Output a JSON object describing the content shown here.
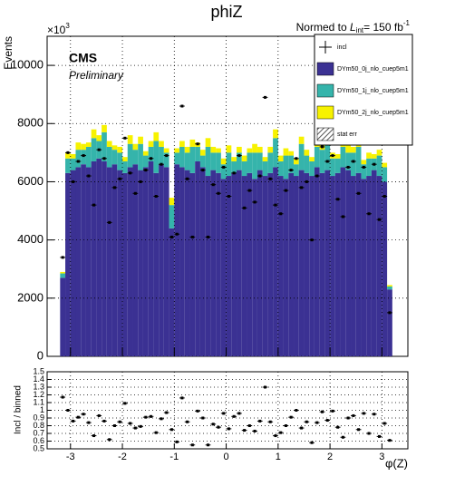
{
  "chart_data": {
    "type": "stacked_histogram",
    "title": "phiZ",
    "normalization": {
      "prefix": "Normed to",
      "symbol": "L",
      "subscript": "int",
      "suffix": "= 150 fb",
      "superscript": "-1"
    },
    "experiment": "CMS",
    "status": "Preliminary",
    "y_label": "Events",
    "y_multiplier": {
      "base": "×10",
      "exponent": "3"
    },
    "x_label": "φ(Z)",
    "ratio_label": "Incl / binned",
    "bins": [
      -3.2,
      -3.1,
      -3.0,
      -2.9,
      -2.8,
      -2.7,
      -2.6,
      -2.5,
      -2.4,
      -2.3,
      -2.2,
      -2.1,
      -2.0,
      -1.9,
      -1.8,
      -1.7,
      -1.6,
      -1.5,
      -1.4,
      -1.3,
      -1.2,
      -1.1,
      -1.0,
      -0.9,
      -0.8,
      -0.7,
      -0.6,
      -0.5,
      -0.4,
      -0.3,
      -0.2,
      -0.1,
      0,
      0.1,
      0.2,
      0.3,
      0.4,
      0.5,
      0.6,
      0.7,
      0.8,
      0.9,
      1.0,
      1.1,
      1.2,
      1.3,
      1.4,
      1.5,
      1.6,
      1.7,
      1.8,
      1.9,
      2.0,
      2.1,
      2.2,
      2.3,
      2.4,
      2.5,
      2.6,
      2.7,
      2.8,
      2.9,
      3.0,
      3.1,
      3.2
    ],
    "series": [
      {
        "name": "DYm50_0j_nlo_cuep5m1",
        "color": "#3b3193",
        "values": [
          2700,
          6300,
          6400,
          6500,
          6600,
          6500,
          6700,
          6800,
          6700,
          6500,
          6600,
          6400,
          6300,
          6500,
          6600,
          6400,
          6500,
          6700,
          6300,
          6600,
          6500,
          4400,
          6600,
          6500,
          6400,
          6300,
          6700,
          6500,
          6200,
          6400,
          6300,
          6100,
          6200,
          6300,
          6400,
          6200,
          6300,
          6100,
          6400,
          6200,
          6300,
          6500,
          6200,
          6100,
          6300,
          6200,
          6400,
          6300,
          6200,
          6500,
          6300,
          6400,
          6200,
          6300,
          6500,
          6400,
          6200,
          6300,
          6100,
          6200,
          6400,
          6200,
          6000,
          2300
        ]
      },
      {
        "name": "DYm50_1j_nlo_cuep5m1",
        "color": "#35b4ab",
        "values": [
          150,
          500,
          400,
          600,
          500,
          700,
          800,
          600,
          1000,
          700,
          500,
          600,
          400,
          800,
          500,
          900,
          400,
          500,
          1100,
          600,
          500,
          800,
          400,
          700,
          600,
          900,
          500,
          400,
          1000,
          600,
          700,
          500,
          800,
          400,
          600,
          500,
          700,
          900,
          600,
          500,
          700,
          1000,
          500,
          800,
          600,
          400,
          900,
          600,
          500,
          700,
          800,
          1000,
          600,
          500,
          700,
          600,
          800,
          900,
          500,
          600,
          400,
          700,
          500,
          100
        ]
      },
      {
        "name": "DYm50_2j_nlo_cuep5m1",
        "color": "#f7f200",
        "values": [
          50,
          200,
          150,
          250,
          200,
          150,
          300,
          200,
          250,
          200,
          150,
          200,
          150,
          300,
          200,
          250,
          150,
          200,
          300,
          200,
          150,
          250,
          150,
          200,
          200,
          250,
          150,
          200,
          300,
          200,
          150,
          200,
          250,
          150,
          200,
          200,
          150,
          300,
          200,
          150,
          200,
          300,
          200,
          250,
          150,
          200,
          250,
          200,
          150,
          200,
          250,
          300,
          200,
          150,
          200,
          250,
          200,
          250,
          150,
          200,
          150,
          200,
          150,
          50
        ]
      }
    ],
    "data_series": {
      "name": "incl",
      "color": "#000000",
      "values": [
        3400,
        7000,
        6000,
        6700,
        6900,
        6200,
        5200,
        7100,
        6800,
        4600,
        5800,
        6100,
        7500,
        6300,
        5600,
        6000,
        6400,
        6800,
        5500,
        6600,
        6900,
        4100,
        4200,
        8600,
        6100,
        4100,
        7300,
        6400,
        4100,
        5900,
        5600,
        6500,
        5500,
        6300,
        6900,
        5100,
        5700,
        5300,
        6200,
        8900,
        6100,
        5200,
        4900,
        5700,
        6400,
        6800,
        5800,
        6000,
        4000,
        6200,
        7200,
        6700,
        6900,
        5400,
        4800,
        6500,
        6700,
        5600,
        6500,
        4900,
        6600,
        4700,
        5500,
        1500
      ]
    },
    "error_name": "stat err",
    "ratio": [
      1.17,
      1.0,
      0.86,
      0.91,
      0.95,
      0.84,
      0.67,
      0.93,
      0.86,
      0.62,
      0.8,
      0.85,
      1.09,
      0.83,
      0.77,
      0.79,
      0.91,
      0.92,
      0.71,
      0.89,
      0.97,
      0.75,
      0.59,
      1.16,
      0.85,
      0.55,
      0.99,
      0.9,
      0.55,
      0.82,
      0.78,
      0.96,
      0.76,
      0.92,
      0.96,
      0.74,
      0.8,
      0.73,
      0.86,
      1.3,
      0.85,
      0.67,
      0.71,
      0.8,
      0.91,
      1.0,
      0.77,
      0.85,
      0.58,
      0.84,
      0.98,
      0.87,
      0.99,
      0.78,
      0.65,
      0.9,
      0.93,
      0.75,
      0.96,
      0.7,
      0.95,
      0.66,
      0.83,
      0.61
    ],
    "xlim": [
      -3.45,
      3.5
    ],
    "xticks": [
      -3,
      -2,
      -1,
      0,
      1,
      2,
      3
    ],
    "ylim": [
      0,
      11000
    ],
    "yticks": [
      0,
      2000,
      4000,
      6000,
      8000,
      10000
    ],
    "ratio_ylim": [
      0.5,
      1.5
    ],
    "ratio_yticks": [
      0.5,
      0.6,
      0.7,
      0.8,
      0.9,
      1,
      1.1,
      1.2,
      1.3,
      1.4,
      1.5
    ],
    "grid": true
  }
}
